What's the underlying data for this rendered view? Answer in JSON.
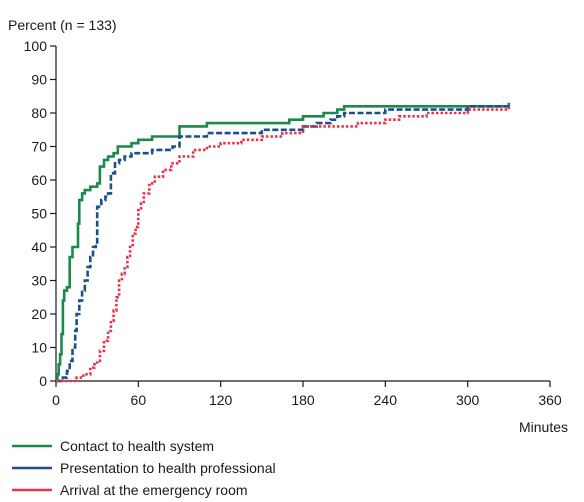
{
  "chart_data": {
    "type": "line",
    "step": true,
    "ylabel": "Percent (n = 133)",
    "xlabel": "Minutes",
    "xlim": [
      0,
      360
    ],
    "ylim": [
      0,
      100
    ],
    "x_ticks": [
      0,
      60,
      120,
      180,
      240,
      300,
      360
    ],
    "y_ticks": [
      0,
      10,
      20,
      30,
      40,
      50,
      60,
      70,
      80,
      90,
      100
    ],
    "grid": false,
    "legend_position": "bottom-left",
    "series": [
      {
        "name": "Contact to health system",
        "color": "#1a8a4a",
        "dash": "solid",
        "points": [
          [
            0,
            0
          ],
          [
            1,
            2
          ],
          [
            2,
            5
          ],
          [
            3,
            8
          ],
          [
            4,
            14
          ],
          [
            5,
            24
          ],
          [
            6,
            27
          ],
          [
            8,
            28
          ],
          [
            10,
            37
          ],
          [
            12,
            40
          ],
          [
            15,
            40
          ],
          [
            16,
            47
          ],
          [
            17,
            54
          ],
          [
            19,
            56
          ],
          [
            21,
            57
          ],
          [
            25,
            58
          ],
          [
            30,
            59
          ],
          [
            32,
            64
          ],
          [
            35,
            66
          ],
          [
            38,
            67
          ],
          [
            42,
            68
          ],
          [
            45,
            70
          ],
          [
            50,
            70
          ],
          [
            55,
            71
          ],
          [
            60,
            72
          ],
          [
            70,
            73
          ],
          [
            80,
            73
          ],
          [
            90,
            76
          ],
          [
            110,
            77
          ],
          [
            130,
            77
          ],
          [
            150,
            77
          ],
          [
            170,
            78
          ],
          [
            180,
            79
          ],
          [
            195,
            80
          ],
          [
            205,
            81
          ],
          [
            210,
            82
          ],
          [
            240,
            82
          ],
          [
            270,
            82
          ],
          [
            300,
            82
          ],
          [
            330,
            83
          ]
        ]
      },
      {
        "name": "Presentation to health professional",
        "color": "#1f4e8c",
        "dash": "dashed",
        "points": [
          [
            0,
            0
          ],
          [
            5,
            1
          ],
          [
            8,
            3
          ],
          [
            10,
            6
          ],
          [
            12,
            10
          ],
          [
            14,
            15
          ],
          [
            15,
            20
          ],
          [
            17,
            24
          ],
          [
            19,
            27
          ],
          [
            21,
            30
          ],
          [
            23,
            34
          ],
          [
            25,
            37
          ],
          [
            27,
            40
          ],
          [
            29,
            41
          ],
          [
            30,
            52
          ],
          [
            33,
            54
          ],
          [
            36,
            55
          ],
          [
            38,
            56
          ],
          [
            40,
            62
          ],
          [
            43,
            65
          ],
          [
            46,
            66
          ],
          [
            50,
            67
          ],
          [
            55,
            68
          ],
          [
            60,
            68
          ],
          [
            70,
            69
          ],
          [
            80,
            69
          ],
          [
            85,
            70
          ],
          [
            90,
            73
          ],
          [
            100,
            73
          ],
          [
            110,
            74
          ],
          [
            130,
            74
          ],
          [
            150,
            75
          ],
          [
            170,
            75
          ],
          [
            180,
            76
          ],
          [
            190,
            77
          ],
          [
            200,
            78
          ],
          [
            205,
            79
          ],
          [
            210,
            80
          ],
          [
            225,
            80
          ],
          [
            240,
            81
          ],
          [
            270,
            81
          ],
          [
            300,
            82
          ],
          [
            330,
            82
          ]
        ]
      },
      {
        "name": "Arrival at the emergency room",
        "color": "#e8334a",
        "dash": "dotted",
        "points": [
          [
            0,
            0
          ],
          [
            10,
            0
          ],
          [
            15,
            1
          ],
          [
            20,
            2
          ],
          [
            25,
            4
          ],
          [
            28,
            5
          ],
          [
            30,
            6
          ],
          [
            32,
            9
          ],
          [
            35,
            12
          ],
          [
            38,
            15
          ],
          [
            40,
            18
          ],
          [
            42,
            21
          ],
          [
            44,
            25
          ],
          [
            46,
            30
          ],
          [
            48,
            32
          ],
          [
            50,
            34
          ],
          [
            52,
            37
          ],
          [
            54,
            40
          ],
          [
            56,
            44
          ],
          [
            58,
            46
          ],
          [
            60,
            51
          ],
          [
            62,
            53
          ],
          [
            64,
            56
          ],
          [
            68,
            59
          ],
          [
            72,
            61
          ],
          [
            78,
            63
          ],
          [
            84,
            65
          ],
          [
            90,
            67
          ],
          [
            100,
            69
          ],
          [
            110,
            70
          ],
          [
            120,
            71
          ],
          [
            135,
            72
          ],
          [
            150,
            73
          ],
          [
            165,
            74
          ],
          [
            180,
            76
          ],
          [
            200,
            76
          ],
          [
            220,
            77
          ],
          [
            240,
            78
          ],
          [
            250,
            79
          ],
          [
            270,
            80
          ],
          [
            300,
            81
          ],
          [
            330,
            82
          ]
        ]
      }
    ]
  }
}
